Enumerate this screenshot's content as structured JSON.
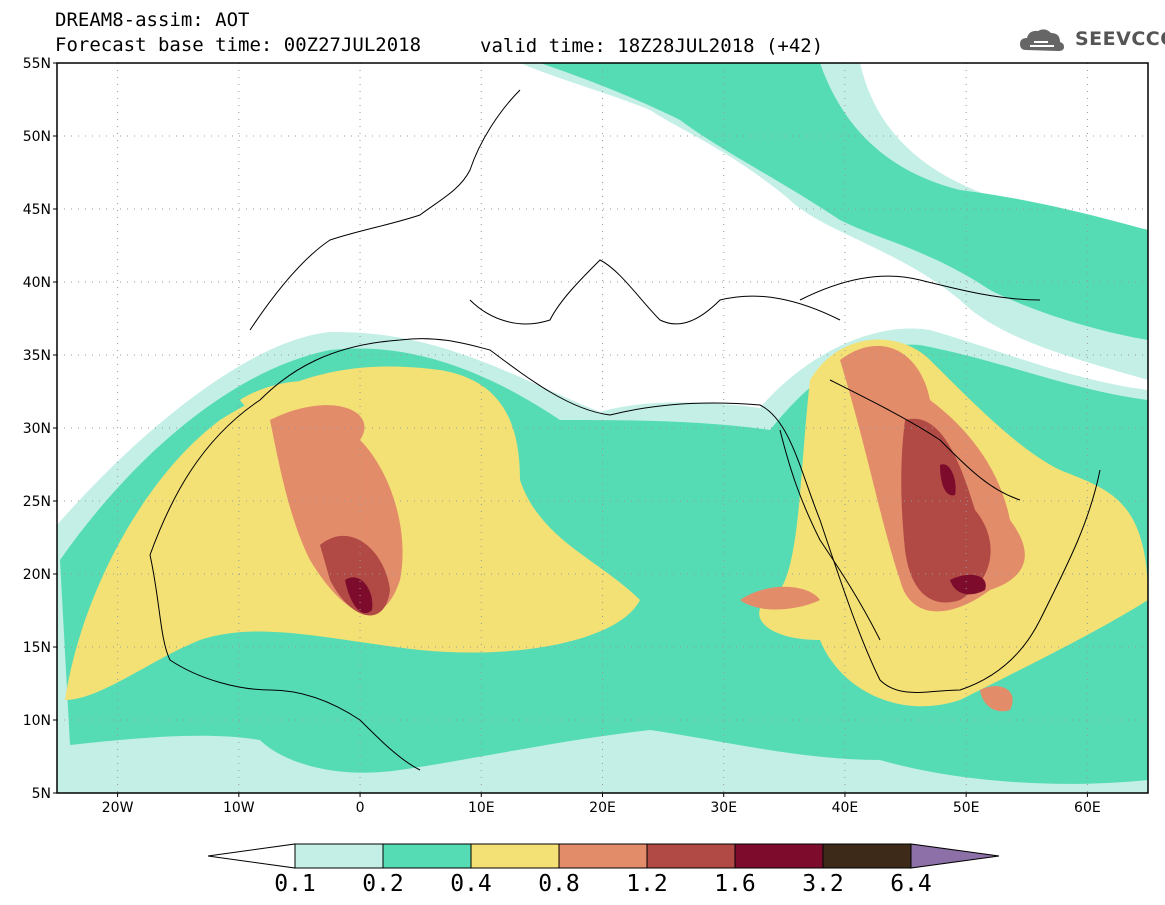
{
  "header": {
    "title": "DREAM8-assim: AOT",
    "base_time": "Forecast base time: 00Z27JUL2018",
    "valid_time": "valid time: 18Z28JUL2018 (+42)",
    "logo": "SEEVCCC"
  },
  "axes": {
    "lat_labels": [
      "55N",
      "50N",
      "45N",
      "40N",
      "35N",
      "30N",
      "25N",
      "20N",
      "15N",
      "10N",
      "5N"
    ],
    "lon_labels": [
      "20W",
      "10W",
      "0",
      "10E",
      "20E",
      "30E",
      "40E",
      "50E",
      "60E"
    ],
    "lat_range": [
      5,
      55
    ],
    "lon_range": [
      -25,
      65
    ]
  },
  "colorbar": {
    "levels": [
      "0.1",
      "0.2",
      "0.4",
      "0.8",
      "1.2",
      "1.6",
      "3.2",
      "6.4"
    ],
    "colors": [
      "#c3efe6",
      "#56dcb4",
      "#f3e176",
      "#e38c6a",
      "#b14a45",
      "#7d0b2c",
      "#3d2a18"
    ],
    "under_color": "#ffffff",
    "over_color": "#8e70a8"
  }
}
